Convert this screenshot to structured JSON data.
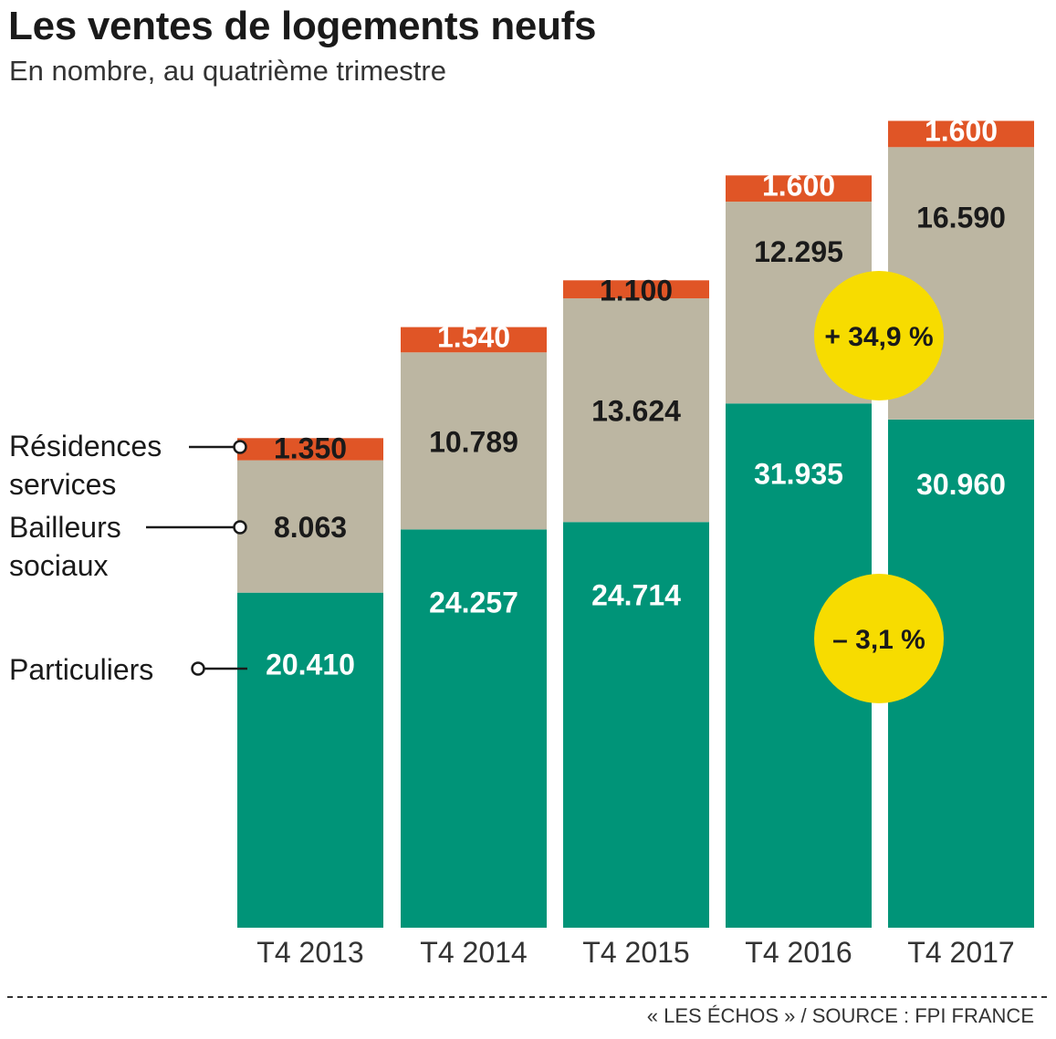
{
  "title": "Les ventes de logements neufs",
  "subtitle": "En nombre, au quatrième trimestre",
  "source": "« LES ÉCHOS » / SOURCE : FPI FRANCE",
  "colors": {
    "particuliers": "#009478",
    "bailleurs_sociaux": "#bcb6a2",
    "residences_services": "#e05526",
    "badge": "#f7dc00"
  },
  "chart_data": {
    "type": "bar",
    "stacked": true,
    "categories": [
      "T4 2013",
      "T4 2014",
      "T4 2015",
      "T4 2016",
      "T4 2017"
    ],
    "series": [
      {
        "name": "Particuliers",
        "values": [
          20410,
          24257,
          24714,
          31935,
          30960
        ],
        "labels": [
          "20.410",
          "24.257",
          "24.714",
          "31.935",
          "30.960"
        ]
      },
      {
        "name": "Bailleurs sociaux",
        "values": [
          8063,
          10789,
          13624,
          12295,
          16590
        ],
        "labels": [
          "8.063",
          "10.789",
          "13.624",
          "12.295",
          "16.590"
        ]
      },
      {
        "name": "Résidences services",
        "values": [
          1350,
          1540,
          1100,
          1600,
          1600
        ],
        "labels": [
          "1.350",
          "1.540",
          "1.100",
          "1.600",
          "1.600"
        ]
      }
    ],
    "legend": [
      "Résidences services",
      "Bailleurs sociaux",
      "Particuliers"
    ],
    "annotations": [
      {
        "text": "+ 34,9 %",
        "series": "Bailleurs sociaux",
        "between": [
          "T4 2016",
          "T4 2017"
        ]
      },
      {
        "text": "– 3,1 %",
        "series": "Particuliers",
        "between": [
          "T4 2016",
          "T4 2017"
        ]
      }
    ],
    "legend_position": "left",
    "grid": false
  }
}
